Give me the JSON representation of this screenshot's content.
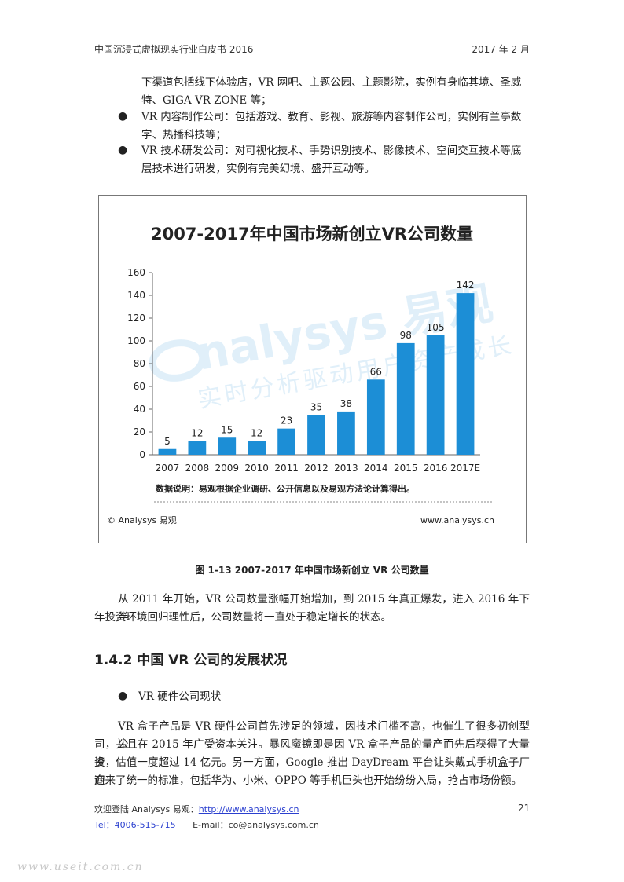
{
  "header": {
    "left": "中国沉浸式虚拟现实行业白皮书 2016",
    "right": "2017 年 2 月"
  },
  "intro": {
    "cont_line1": "下渠道包括线下体验店，VR 网吧、主题公园、主题影院，实例有身临其境、圣威",
    "cont_line2": "特、GIGA VR ZONE 等；",
    "bullets": [
      {
        "line1": "VR 内容制作公司：包括游戏、教育、影视、旅游等内容制作公司，实例有兰亭数",
        "line2": "字、热播科技等；"
      },
      {
        "line1": "VR 技术研发公司：对可视化技术、手势识别技术、影像技术、空间交互技术等底",
        "line2": "层技术进行研发，实例有完美幻境、盛开互动等。"
      }
    ]
  },
  "chart_data": {
    "type": "bar",
    "title": "2007-2017年中国市场新创立VR公司数量",
    "categories": [
      "2007",
      "2008",
      "2009",
      "2010",
      "2011",
      "2012",
      "2013",
      "2014",
      "2015",
      "2016",
      "2017E"
    ],
    "values": [
      5,
      12,
      15,
      12,
      23,
      35,
      38,
      66,
      98,
      105,
      142
    ],
    "ylim": [
      0,
      160
    ],
    "yticks": [
      0,
      20,
      40,
      60,
      80,
      100,
      120,
      140,
      160
    ],
    "bar_color": "#1c8ed6",
    "grid": false,
    "note": "数据说明：易观根据企业调研、公开信息以及易观方法论计算得出。",
    "source_left": "© Analysys 易观",
    "source_right": "www.analysys.cn",
    "watermark_brand": "nalysys 易观",
    "watermark_slogan": "实时分析驱动用户资产成长"
  },
  "figure_caption": "图 1-13 2007-2017 年中国市场新创立 VR 公司数量",
  "analysis": {
    "line1": "从 2011 年开始，VR 公司数量涨幅开始增加，到 2015 年真正爆发，进入 2016 年下半",
    "line2": "年投资环境回归理性后，公司数量将一直处于稳定增长的状态。"
  },
  "section": {
    "title": "1.4.2  中国 VR 公司的发展状况"
  },
  "subsection_bullet": "VR 硬件公司现状",
  "body": {
    "line1": "VR 盒子产品是 VR 硬件公司首先涉足的领域，因技术门槛不高，也催生了很多初创型公",
    "line2": "司，并且在 2015 年广受资本关注。暴风魔镜即是因 VR 盒子产品的量产而先后获得了大量投",
    "line3": "资，估值一度超过 14 亿元。另一方面，Google 推出 DayDream 平台让头戴式手机盒子厂商",
    "line4": "迎来了统一的标准，包括华为、小米、OPPO 等手机巨头也开始纷纷入局，抢占市场份额。"
  },
  "footer": {
    "welcome": "欢迎登陆 Analysys    易观：",
    "url": "http://www.analysys.cn",
    "page_number": "21",
    "tel": "Tel：4006-515-715",
    "email": "E-mail：co@analysys.com.cn",
    "site_watermark": "www.useit.com.cn"
  },
  "colors": {
    "bar": "#1c8ed6",
    "link": "#2a3fcf"
  }
}
